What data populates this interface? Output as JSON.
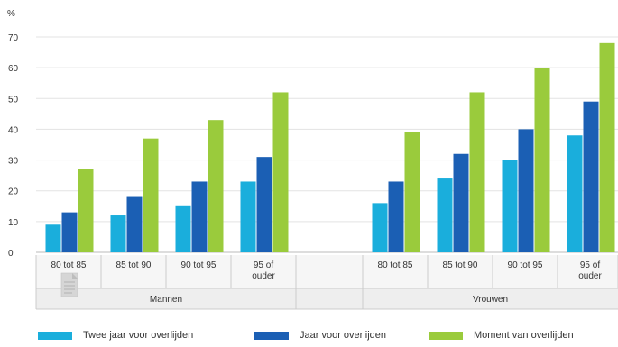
{
  "chart_data": {
    "type": "bar",
    "title": "",
    "ylabel": "%",
    "xlabel": "",
    "ylim": [
      0,
      70
    ],
    "yticks": [
      0,
      10,
      20,
      30,
      40,
      50,
      60,
      70
    ],
    "grid": true,
    "legend_position": "bottom",
    "groups": [
      {
        "label": "Mannen",
        "categories": [
          "80 tot 85",
          "85 tot 90",
          "90 tot 95",
          "95 of ouder"
        ]
      },
      {
        "label": "Vrouwen",
        "categories": [
          "80 tot 85",
          "85 tot 90",
          "90 tot 95",
          "95 of ouder"
        ]
      }
    ],
    "series": [
      {
        "name": "Twee jaar voor overlijden",
        "color": "#1aaedc",
        "values": [
          9,
          12,
          15,
          23,
          16,
          24,
          30,
          38
        ]
      },
      {
        "name": "Jaar voor overlijden",
        "color": "#1b5fb4",
        "values": [
          13,
          18,
          23,
          31,
          23,
          32,
          40,
          49
        ]
      },
      {
        "name": "Moment van overlijden",
        "color": "#9acb3c",
        "values": [
          27,
          37,
          43,
          52,
          39,
          52,
          60,
          68
        ]
      }
    ]
  }
}
